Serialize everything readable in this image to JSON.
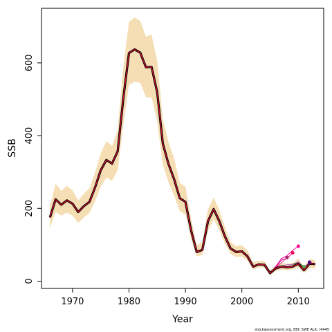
{
  "chart_data": {
    "type": "line",
    "title": "",
    "xlabel": "Year",
    "ylabel": "SSB",
    "xlim": [
      1964.5,
      2014.5
    ],
    "ylim": [
      -20,
      750
    ],
    "x_ticks": [
      1970,
      1980,
      1990,
      2000,
      2010
    ],
    "y_ticks": [
      0,
      200,
      400,
      600
    ],
    "grid": false,
    "footnote": "stockassessment.org, EBC SWE ALK, r4445",
    "colors": {
      "band": "#f5deb3",
      "main": "#000000",
      "overlay": "#c8102e",
      "retro": [
        "#b45bd0",
        "#e0308a",
        "#e8007a",
        "#ff00aa",
        "#2a7a2a",
        "#6a0f8a"
      ],
      "retro_points": [
        "#a52a6a",
        "#e8105a",
        "#ff1493",
        "#6aa84f",
        "#4b0082"
      ]
    },
    "series": [
      {
        "years": [
          1966,
          1967,
          1968,
          1969,
          1970,
          1971,
          1972,
          1973,
          1974,
          1975,
          1976,
          1977,
          1978,
          1979,
          1980,
          1981,
          1982,
          1983,
          1984,
          1985,
          1986,
          1987,
          1988,
          1989,
          1990,
          1991,
          1992,
          1993,
          1994,
          1995,
          1996,
          1997,
          1998,
          1999,
          2000,
          2001,
          2002,
          2003,
          2004,
          2005,
          2006,
          2007,
          2008,
          2009,
          2010,
          2011,
          2012,
          2013
        ],
        "values": [
          175,
          225,
          210,
          222,
          213,
          190,
          206,
          218,
          258,
          305,
          333,
          323,
          357,
          503,
          627,
          637,
          628,
          588,
          589,
          519,
          378,
          322,
          280,
          228,
          218,
          140,
          80,
          86,
          165,
          198,
          165,
          123,
          90,
          80,
          82,
          68,
          40,
          46,
          45,
          22,
          35,
          40,
          38,
          40,
          48,
          30,
          48,
          47
        ],
        "lower": [
          145,
          190,
          180,
          188,
          180,
          160,
          175,
          188,
          220,
          260,
          285,
          276,
          305,
          430,
          540,
          548,
          545,
          506,
          505,
          440,
          320,
          272,
          235,
          192,
          183,
          115,
          68,
          72,
          138,
          170,
          140,
          103,
          75,
          66,
          68,
          56,
          32,
          38,
          37,
          16,
          28,
          32,
          30,
          32,
          38,
          22,
          36,
          35
        ],
        "upper": [
          205,
          268,
          248,
          262,
          250,
          222,
          240,
          255,
          300,
          352,
          385,
          372,
          415,
          590,
          713,
          725,
          715,
          672,
          678,
          605,
          445,
          382,
          338,
          270,
          260,
          172,
          98,
          108,
          198,
          230,
          196,
          148,
          108,
          96,
          99,
          84,
          52,
          56,
          55,
          30,
          44,
          50,
          48,
          50,
          62,
          40,
          60,
          58
        ]
      }
    ],
    "retro_peels": [
      {
        "years": [
          2005,
          2006,
          2007,
          2008,
          2009,
          2010,
          2011,
          2012
        ],
        "values": [
          22,
          35,
          42,
          45,
          46,
          53,
          38,
          52
        ]
      },
      {
        "years": [
          2005,
          2006,
          2007,
          2008
        ],
        "values": [
          22,
          37,
          50,
          65
        ]
      },
      {
        "years": [
          2005,
          2006,
          2007,
          2008,
          2009
        ],
        "values": [
          22,
          38,
          58,
          62,
          78
        ]
      },
      {
        "years": [
          2005,
          2006,
          2007,
          2008,
          2009,
          2010
        ],
        "values": [
          22,
          40,
          62,
          70,
          85,
          96
        ]
      },
      {
        "years": [
          2009,
          2010,
          2011
        ],
        "values": [
          46,
          50,
          40
        ]
      }
    ],
    "retro_end_points": [
      {
        "x": 2008,
        "y": 65
      },
      {
        "x": 2009,
        "y": 78
      },
      {
        "x": 2010,
        "y": 96
      },
      {
        "x": 2011,
        "y": 40
      },
      {
        "x": 2012,
        "y": 52
      }
    ]
  }
}
